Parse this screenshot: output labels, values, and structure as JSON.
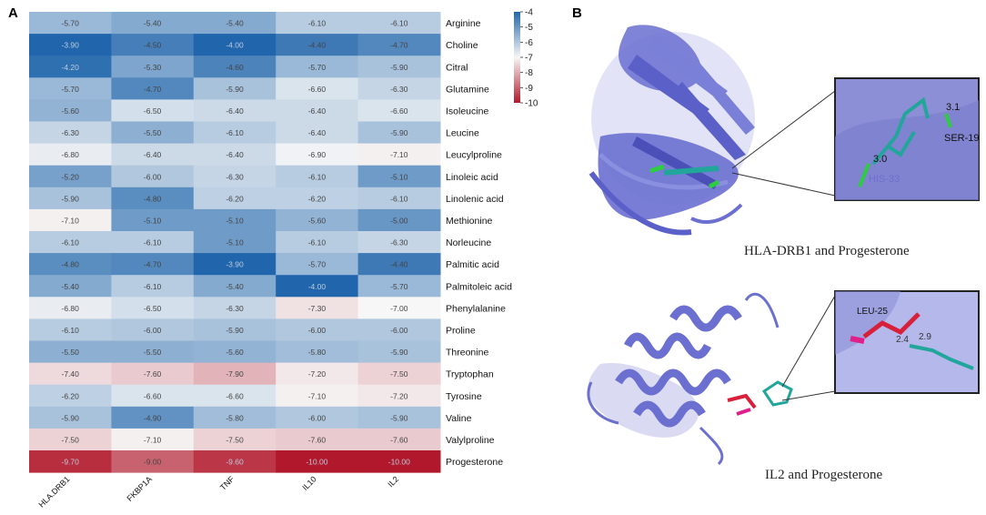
{
  "panels": {
    "a_label": "A",
    "b_label": "B"
  },
  "chart_data": {
    "type": "heatmap",
    "columns": [
      "HLA.DRB1",
      "FKBP1A",
      "TNF",
      "IL10",
      "IL2"
    ],
    "rows": [
      "Arginine",
      "Choline",
      "Citral",
      "Glutamine",
      "Isoleucine",
      "Leucine",
      "Leucylproline",
      "Linoleic acid",
      "Linolenic acid",
      "Methionine",
      "Norleucine",
      "Palmitic acid",
      "Palmitoleic acid",
      "Phenylalanine",
      "Proline",
      "Threonine",
      "Tryptophan",
      "Tyrosine",
      "Valine",
      "Valylproline",
      "Progesterone"
    ],
    "values": [
      [
        -5.7,
        -5.4,
        -5.4,
        -6.1,
        -6.1
      ],
      [
        -3.9,
        -4.5,
        -4.0,
        -4.4,
        -4.7
      ],
      [
        -4.2,
        -5.3,
        -4.6,
        -5.7,
        -5.9
      ],
      [
        -5.7,
        -4.7,
        -5.9,
        -6.6,
        -6.3
      ],
      [
        -5.6,
        -6.5,
        -6.4,
        -6.4,
        -6.6
      ],
      [
        -6.3,
        -5.5,
        -6.1,
        -6.4,
        -5.9
      ],
      [
        -6.8,
        -6.4,
        -6.4,
        -6.9,
        -7.1
      ],
      [
        -5.2,
        -6.0,
        -6.3,
        -6.1,
        -5.1
      ],
      [
        -5.9,
        -4.8,
        -6.2,
        -6.2,
        -6.1
      ],
      [
        -7.1,
        -5.1,
        -5.1,
        -5.6,
        -5.0
      ],
      [
        -6.1,
        -6.1,
        -5.1,
        -6.1,
        -6.3
      ],
      [
        -4.8,
        -4.7,
        -3.9,
        -5.7,
        -4.4
      ],
      [
        -5.4,
        -6.1,
        -5.4,
        -4.0,
        -5.7
      ],
      [
        -6.8,
        -6.5,
        -6.3,
        -7.3,
        -7.0
      ],
      [
        -6.1,
        -6.0,
        -5.9,
        -6.0,
        -6.0
      ],
      [
        -5.5,
        -5.5,
        -5.6,
        -5.8,
        -5.9
      ],
      [
        -7.4,
        -7.6,
        -7.9,
        -7.2,
        -7.5
      ],
      [
        -6.2,
        -6.6,
        -6.6,
        -7.1,
        -7.2
      ],
      [
        -5.9,
        -4.9,
        -5.8,
        -6.0,
        -5.9
      ],
      [
        -7.5,
        -7.1,
        -7.5,
        -7.6,
        -7.6
      ],
      [
        -9.7,
        -9.0,
        -9.6,
        -10.0,
        -10.0
      ]
    ],
    "value_labels": [
      [
        "-5.70",
        "-5.40",
        "-5.40",
        "-6.10",
        "-6.10"
      ],
      [
        "-3.90",
        "-4.50",
        "-4.00",
        "-4.40",
        "-4.70"
      ],
      [
        "-4.20",
        "-5.30",
        "-4.60",
        "-5.70",
        "-5.90"
      ],
      [
        "-5.70",
        "-4.70",
        "-5.90",
        "-6.60",
        "-6.30"
      ],
      [
        "-5.60",
        "-6.50",
        "-6.40",
        "-6.40",
        "-6.60"
      ],
      [
        "-6.30",
        "-5.50",
        "-6.10",
        "-6.40",
        "-5.90"
      ],
      [
        "-6.80",
        "-6.40",
        "-6.40",
        "-6.90",
        "-7.10"
      ],
      [
        "-5.20",
        "-6.00",
        "-6.30",
        "-6.10",
        "-5.10"
      ],
      [
        "-5.90",
        "-4.80",
        "-6.20",
        "-6.20",
        "-6.10"
      ],
      [
        "-7.10",
        "-5.10",
        "-5.10",
        "-5.60",
        "-5.00"
      ],
      [
        "-6.10",
        "-6.10",
        "-5.10",
        "-6.10",
        "-6.30"
      ],
      [
        "-4.80",
        "-4.70",
        "-3.90",
        "-5.70",
        "-4.40"
      ],
      [
        "-5.40",
        "-6.10",
        "-5.40",
        "-4.00",
        "-5.70"
      ],
      [
        "-6.80",
        "-6.50",
        "-6.30",
        "-7.30",
        "-7.00"
      ],
      [
        "-6.10",
        "-6.00",
        "-5.90",
        "-6.00",
        "-6.00"
      ],
      [
        "-5.50",
        "-5.50",
        "-5.60",
        "-5.80",
        "-5.90"
      ],
      [
        "-7.40",
        "-7.60",
        "-7.90",
        "-7.20",
        "-7.50"
      ],
      [
        "-6.20",
        "-6.60",
        "-6.60",
        "-7.10",
        "-7.20"
      ],
      [
        "-5.90",
        "-4.90",
        "-5.80",
        "-6.00",
        "-5.90"
      ],
      [
        "-7.50",
        "-7.10",
        "-7.50",
        "-7.60",
        "-7.60"
      ],
      [
        "-9.70",
        "-9.00",
        "-9.60",
        "-10.00",
        "-10.00"
      ]
    ],
    "colorbar": {
      "ticks": [
        "-4",
        "-5",
        "-6",
        "-7",
        "-8",
        "-9",
        "-10"
      ],
      "range": [
        -10,
        -4
      ],
      "colors": {
        "high": "#2166ac",
        "mid": "#f7f7f7",
        "low": "#b2182b"
      }
    }
  },
  "structures": {
    "top": {
      "caption": "HLA-DRB1 and Progesterone",
      "labels": [
        "3.1",
        "SER-19",
        "3.0",
        "HIS-33"
      ]
    },
    "bottom": {
      "caption": "IL2 and Progesterone",
      "labels": [
        "LEU-25",
        "2.4",
        "2.9"
      ]
    }
  },
  "colors": {
    "protein": "#6a6fd0",
    "protein_light": "#a4a8e6",
    "ligand": "#22a59a",
    "residue_green": "#2ecc40",
    "residue_red": "#d8203a",
    "residue_magenta": "#e0208a"
  }
}
